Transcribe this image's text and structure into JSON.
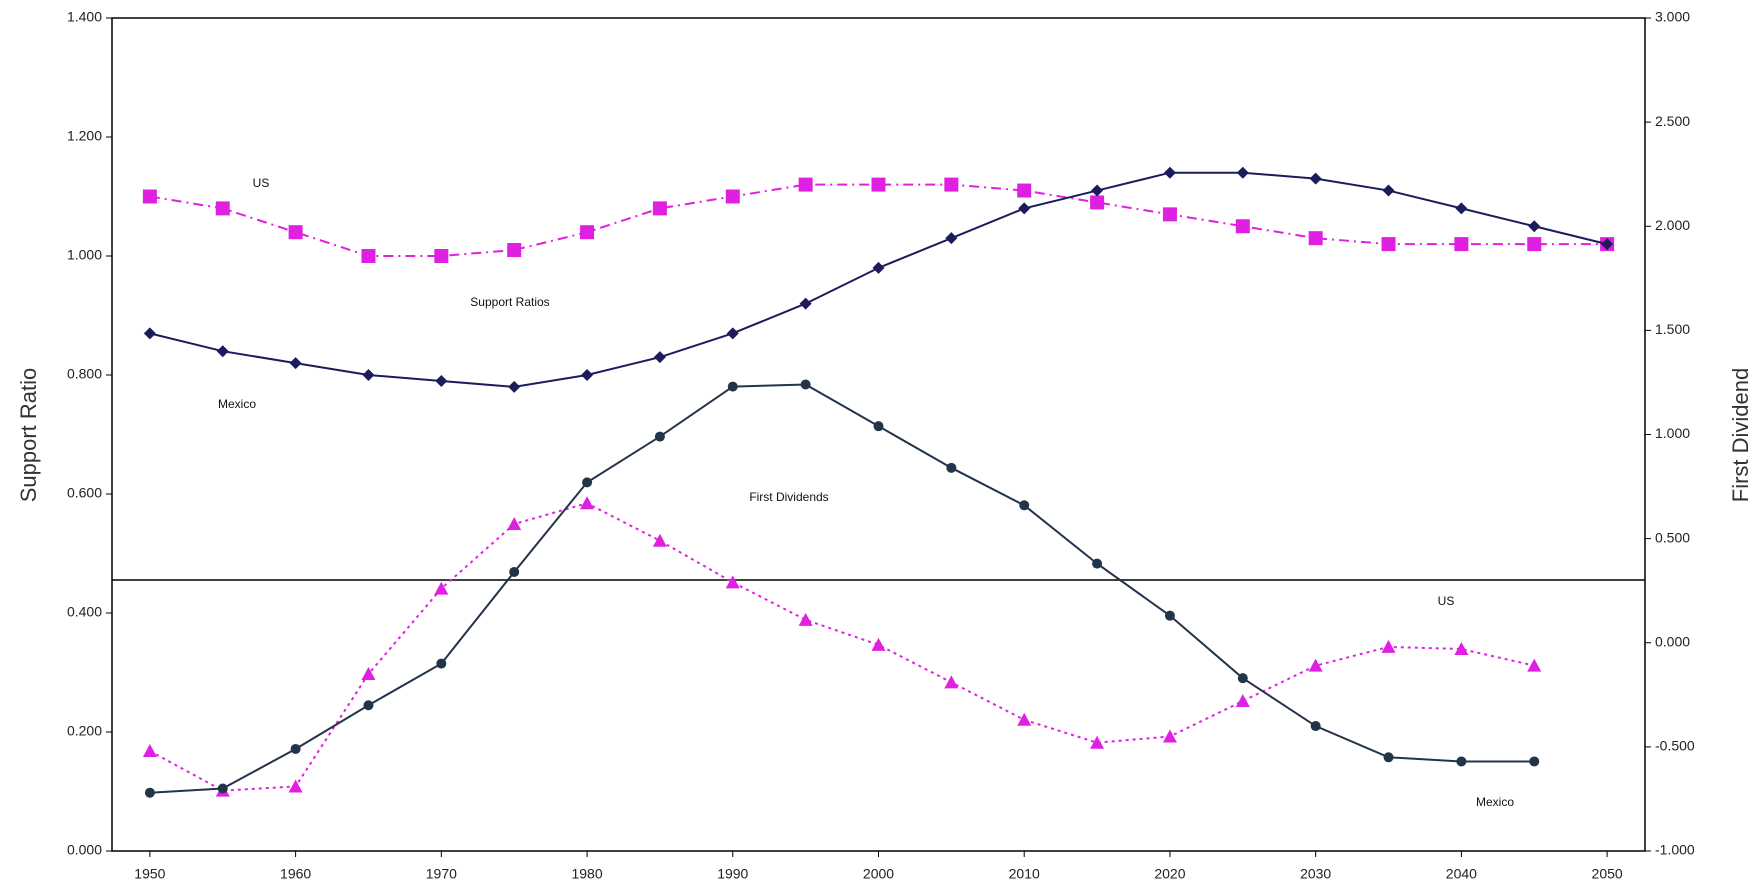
{
  "chart_data": {
    "type": "line",
    "y_label": "Support Ratio",
    "y2_label": "First Dividend",
    "x": [
      1950,
      1955,
      1960,
      1965,
      1970,
      1975,
      1980,
      1985,
      1990,
      1995,
      2000,
      2005,
      2010,
      2015,
      2020,
      2025,
      2030,
      2035,
      2040,
      2045,
      2050
    ],
    "xlim": [
      1947.4,
      2052.6
    ],
    "xticks": [
      1950,
      1960,
      1970,
      1980,
      1990,
      2000,
      2010,
      2020,
      2030,
      2040,
      2050
    ],
    "ylim": [
      0,
      1.4
    ],
    "yticks": [
      {
        "value": 0,
        "label": "0.000"
      },
      {
        "value": 0.2,
        "label": "0.200"
      },
      {
        "value": 0.4,
        "label": "0.400"
      },
      {
        "value": 0.6,
        "label": "0.600"
      },
      {
        "value": 0.8,
        "label": "0.800"
      },
      {
        "value": 1.0,
        "label": "1.000"
      },
      {
        "value": 1.2,
        "label": "1.200"
      },
      {
        "value": 1.4,
        "label": "1.400"
      }
    ],
    "y2lim": [
      -1,
      3
    ],
    "y2ticks": [
      {
        "value": -1,
        "label": "-1.000"
      },
      {
        "value": -0.5,
        "label": "-0.500"
      },
      {
        "value": 0,
        "label": "0.000"
      },
      {
        "value": 0.5,
        "label": "0.500"
      },
      {
        "value": 1,
        "label": "1.000"
      },
      {
        "value": 1.5,
        "label": "1.500"
      },
      {
        "value": 2,
        "label": "2.000"
      },
      {
        "value": 2.5,
        "label": "2.500"
      },
      {
        "value": 3,
        "label": "3.000"
      }
    ],
    "series": [
      {
        "name": "US",
        "color": "#e020e0",
        "marker": "square",
        "dash": "dashdot",
        "values": [
          1.1,
          1.08,
          1.04,
          1.0,
          1.0,
          1.01,
          1.04,
          1.08,
          1.1,
          1.12,
          1.12,
          1.12,
          1.11,
          1.09,
          1.07,
          1.05,
          1.03,
          1.02,
          1.02,
          1.02,
          1.02
        ]
      },
      {
        "name": "Mexico",
        "color": "#1c1c5c",
        "marker": "diamond",
        "dash": "solid",
        "values": [
          0.87,
          0.84,
          0.82,
          0.8,
          0.79,
          0.78,
          0.8,
          0.83,
          0.87,
          0.92,
          0.98,
          1.03,
          1.08,
          1.11,
          1.14,
          1.14,
          1.13,
          1.11,
          1.08,
          1.05,
          1.02
        ]
      },
      {
        "name": "US",
        "color": "#e020e0",
        "marker": "triangle",
        "dash": "dot",
        "axis": "y2",
        "values": [
          -0.52,
          -0.71,
          -0.69,
          -0.15,
          0.26,
          0.57,
          0.67,
          0.49,
          0.29,
          0.11,
          -0.01,
          -0.19,
          -0.37,
          -0.48,
          -0.45,
          -0.28,
          -0.11,
          -0.02,
          -0.03,
          -0.11,
          null
        ]
      },
      {
        "name": "Mexico",
        "color": "#22334a",
        "marker": "circle",
        "dash": "solid",
        "axis": "y2",
        "values": [
          -0.72,
          -0.7,
          -0.51,
          -0.3,
          -0.1,
          0.34,
          0.77,
          0.99,
          1.23,
          1.24,
          1.04,
          0.84,
          0.66,
          0.38,
          0.13,
          -0.17,
          -0.4,
          -0.55,
          -0.57,
          -0.57,
          null
        ]
      }
    ],
    "annotations": [
      "Support Ratios",
      "First Dividends"
    ]
  }
}
